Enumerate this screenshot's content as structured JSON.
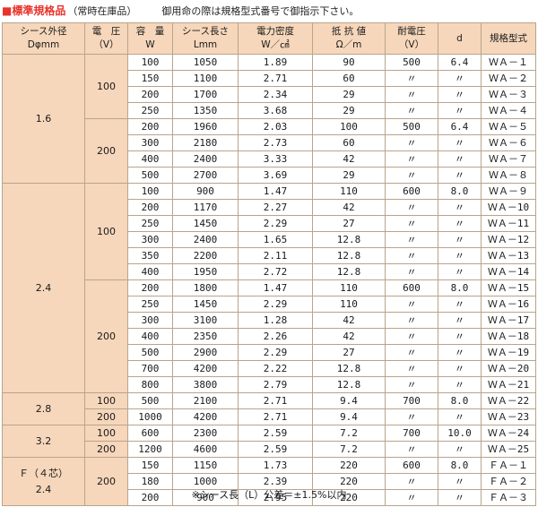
{
  "header": {
    "bullet": "■",
    "title": "標準規格品",
    "subtitle": "（常時在庫品）",
    "note": "御用命の際は規格型式番号で御指示下さい。"
  },
  "table": {
    "headers": [
      [
        "シース外径",
        "Dφmm"
      ],
      [
        "電　圧",
        "（V）"
      ],
      [
        "容　量",
        "W"
      ],
      [
        "シース長さ",
        "Lmm"
      ],
      [
        "電力密度",
        "W／㎠"
      ],
      [
        "抵 抗 値",
        "Ω／m"
      ],
      [
        "耐電圧",
        "（V）"
      ],
      [
        "d",
        ""
      ],
      [
        "規格型式",
        ""
      ]
    ],
    "groups": [
      {
        "diameter": [
          "1.6"
        ],
        "voltages": [
          {
            "voltage": "100",
            "rows": [
              [
                "100",
                "1050",
                "1.89",
                "90",
                "500",
                "6.4",
                "ＷＡ－１"
              ],
              [
                "150",
                "1100",
                "2.71",
                "60",
                "〃",
                "〃",
                "ＷＡ－２"
              ],
              [
                "200",
                "1700",
                "2.34",
                "29",
                "〃",
                "〃",
                "ＷＡ－３"
              ],
              [
                "250",
                "1350",
                "3.68",
                "29",
                "〃",
                "〃",
                "ＷＡ－４"
              ]
            ]
          },
          {
            "voltage": "200",
            "rows": [
              [
                "200",
                "1960",
                "2.03",
                "100",
                "500",
                "6.4",
                "ＷＡ－５"
              ],
              [
                "300",
                "2180",
                "2.73",
                "60",
                "〃",
                "〃",
                "ＷＡ－６"
              ],
              [
                "400",
                "2400",
                "3.33",
                "42",
                "〃",
                "〃",
                "ＷＡ－７"
              ],
              [
                "500",
                "2700",
                "3.69",
                "29",
                "〃",
                "〃",
                "ＷＡ－８"
              ]
            ]
          }
        ]
      },
      {
        "diameter": [
          "2.4"
        ],
        "voltages": [
          {
            "voltage": "100",
            "rows": [
              [
                "100",
                "900",
                "1.47",
                "110",
                "600",
                "8.0",
                "ＷＡ－９"
              ],
              [
                "200",
                "1170",
                "2.27",
                "42",
                "〃",
                "〃",
                "ＷＡ－10"
              ],
              [
                "250",
                "1450",
                "2.29",
                "27",
                "〃",
                "〃",
                "ＷＡ－11"
              ],
              [
                "300",
                "2400",
                "1.65",
                "12.8",
                "〃",
                "〃",
                "ＷＡ－12"
              ],
              [
                "350",
                "2200",
                "2.11",
                "12.8",
                "〃",
                "〃",
                "ＷＡ－13"
              ],
              [
                "400",
                "1950",
                "2.72",
                "12.8",
                "〃",
                "〃",
                "ＷＡ－14"
              ]
            ]
          },
          {
            "voltage": "200",
            "rows": [
              [
                "200",
                "1800",
                "1.47",
                "110",
                "600",
                "8.0",
                "ＷＡ－15"
              ],
              [
                "250",
                "1450",
                "2.29",
                "110",
                "〃",
                "〃",
                "ＷＡ－16"
              ],
              [
                "300",
                "3100",
                "1.28",
                "42",
                "〃",
                "〃",
                "ＷＡ－17"
              ],
              [
                "400",
                "2350",
                "2.26",
                "42",
                "〃",
                "〃",
                "ＷＡ－18"
              ],
              [
                "500",
                "2900",
                "2.29",
                "27",
                "〃",
                "〃",
                "ＷＡ－19"
              ],
              [
                "700",
                "4200",
                "2.22",
                "12.8",
                "〃",
                "〃",
                "ＷＡ－20"
              ],
              [
                "800",
                "3800",
                "2.79",
                "12.8",
                "〃",
                "〃",
                "ＷＡ－21"
              ]
            ]
          }
        ]
      },
      {
        "diameter": [
          "2.8"
        ],
        "voltages": [
          {
            "voltage": "100",
            "rows": [
              [
                "500",
                "2100",
                "2.71",
                "9.4",
                "700",
                "8.0",
                "ＷＡ－22"
              ]
            ]
          },
          {
            "voltage": "200",
            "rows": [
              [
                "1000",
                "4200",
                "2.71",
                "9.4",
                "〃",
                "〃",
                "ＷＡ－23"
              ]
            ]
          }
        ]
      },
      {
        "diameter": [
          "3.2"
        ],
        "voltages": [
          {
            "voltage": "100",
            "rows": [
              [
                "600",
                "2300",
                "2.59",
                "7.2",
                "700",
                "10.0",
                "ＷＡ－24"
              ]
            ]
          },
          {
            "voltage": "200",
            "rows": [
              [
                "1200",
                "4600",
                "2.59",
                "7.2",
                "〃",
                "〃",
                "ＷＡ－25"
              ]
            ]
          }
        ]
      },
      {
        "diameter": [
          "Ｆ（４芯）",
          "2.4"
        ],
        "voltages": [
          {
            "voltage": "200",
            "rows": [
              [
                "150",
                "1150",
                "1.73",
                "220",
                "600",
                "8.0",
                "ＦＡ－１"
              ],
              [
                "180",
                "1000",
                "2.39",
                "220",
                "〃",
                "〃",
                "ＦＡ－２"
              ],
              [
                "200",
                "900",
                "2.95",
                "220",
                "〃",
                "〃",
                "ＦＡ－３"
              ]
            ]
          }
        ]
      }
    ]
  },
  "footnote": "※シース長（L）公差＝±1.5%以内"
}
